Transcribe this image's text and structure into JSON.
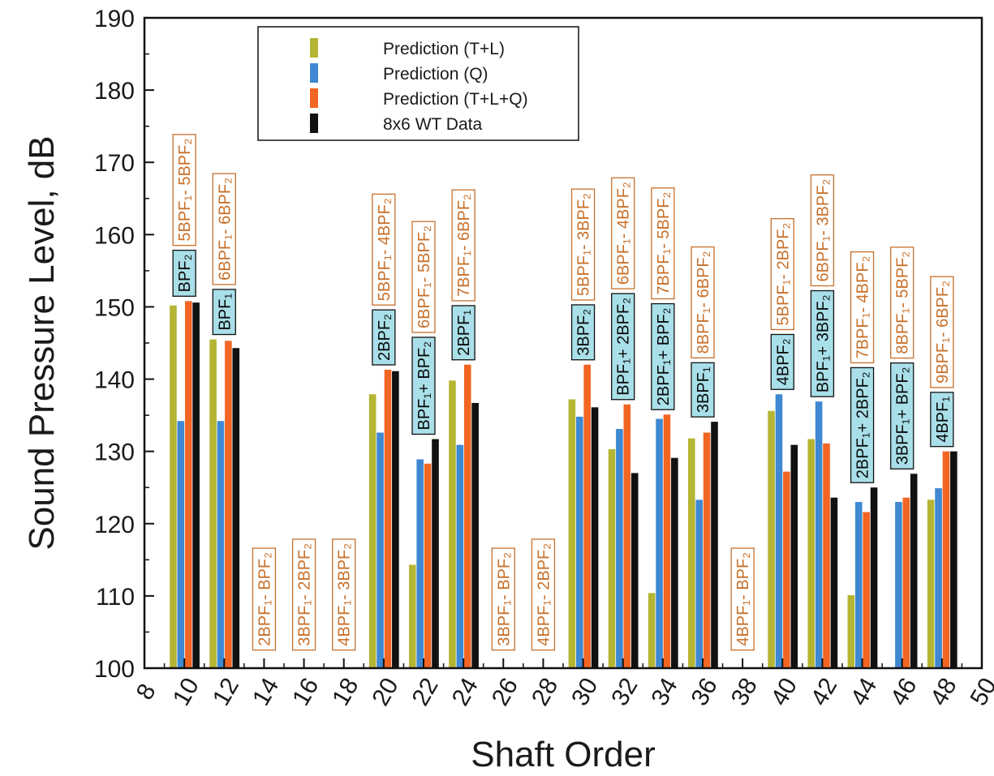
{
  "chart_data": {
    "type": "bar",
    "xlabel": "Shaft Order",
    "ylabel": "Sound Pressure Level, dB",
    "ylim": [
      100,
      190
    ],
    "yticks": [
      100,
      110,
      120,
      130,
      140,
      150,
      160,
      170,
      180,
      190
    ],
    "categories": [
      "8",
      "10",
      "12",
      "14",
      "16",
      "18",
      "20",
      "22",
      "24",
      "26",
      "28",
      "30",
      "32",
      "34",
      "36",
      "38",
      "40",
      "42",
      "44",
      "46",
      "48",
      "50"
    ],
    "grid": false,
    "legend_position": "top-center",
    "series": [
      {
        "name": "Prediction (T+L)",
        "color": "#b5b534",
        "values": [
          null,
          150.2,
          145.5,
          null,
          null,
          null,
          137.9,
          114.3,
          139.8,
          null,
          null,
          137.2,
          130.3,
          110.4,
          131.8,
          null,
          135.6,
          131.7,
          110.1,
          null,
          123.3,
          null
        ]
      },
      {
        "name": "Prediction (Q)",
        "color": "#3f88d2",
        "values": [
          null,
          134.2,
          134.2,
          null,
          null,
          null,
          132.6,
          128.9,
          130.9,
          null,
          null,
          134.8,
          133.1,
          134.5,
          123.3,
          null,
          137.9,
          136.9,
          123.0,
          123.0,
          124.9,
          null
        ]
      },
      {
        "name": "Prediction (T+L+Q)",
        "color": "#f26522",
        "values": [
          null,
          150.8,
          145.3,
          null,
          null,
          null,
          141.3,
          128.3,
          142.0,
          null,
          null,
          142.0,
          136.5,
          135.1,
          132.6,
          null,
          127.2,
          131.1,
          121.6,
          123.6,
          130.0,
          null
        ]
      },
      {
        "name": "8x6 WT Data",
        "color": "#111111",
        "values": [
          null,
          150.6,
          144.3,
          null,
          null,
          null,
          141.1,
          131.7,
          136.7,
          null,
          null,
          136.1,
          127.0,
          129.1,
          134.1,
          null,
          130.9,
          123.6,
          125.0,
          126.9,
          130.0,
          null
        ]
      }
    ],
    "annotations": {
      "sum_boxes": [
        {
          "category": "10",
          "label": "BPF₂"
        },
        {
          "category": "12",
          "label": "BPF₁"
        },
        {
          "category": "20",
          "label": "2BPF₂"
        },
        {
          "category": "22",
          "label": "BPF₁+ BPF₂"
        },
        {
          "category": "24",
          "label": "2BPF₁"
        },
        {
          "category": "30",
          "label": "3BPF₂"
        },
        {
          "category": "32",
          "label": "BPF₁+ 2BPF₂"
        },
        {
          "category": "34",
          "label": "2BPF₁+ BPF₂"
        },
        {
          "category": "36",
          "label": "3BPF₁"
        },
        {
          "category": "40",
          "label": "4BPF₂"
        },
        {
          "category": "42",
          "label": "BPF₁+ 3BPF₂"
        },
        {
          "category": "44",
          "label": "2BPF₁+ 2BPF₂"
        },
        {
          "category": "46",
          "label": "3BPF₁+ BPF₂"
        },
        {
          "category": "48",
          "label": "4BPF₁"
        }
      ],
      "difference_boxes": [
        {
          "category": "10",
          "label": "5BPF₁- 5BPF₂"
        },
        {
          "category": "12",
          "label": "6BPF₁- 6BPF₂"
        },
        {
          "category": "14",
          "label": "2BPF₁- BPF₂"
        },
        {
          "category": "16",
          "label": "3BPF₁- 2BPF₂"
        },
        {
          "category": "18",
          "label": "4BPF₁- 3BPF₂"
        },
        {
          "category": "20",
          "label": "5BPF₁- 4BPF₂"
        },
        {
          "category": "22",
          "label": "6BPF₁- 5BPF₂"
        },
        {
          "category": "24",
          "label": "7BPF₁- 6BPF₂"
        },
        {
          "category": "26",
          "label": "3BPF₁- BPF₂"
        },
        {
          "category": "28",
          "label": "4BPF₁- 2BPF₂"
        },
        {
          "category": "30",
          "label": "5BPF₁- 3BPF₂"
        },
        {
          "category": "32",
          "label": "6BPF₁- 4BPF₂"
        },
        {
          "category": "34",
          "label": "7BPF₁- 5BPF₂"
        },
        {
          "category": "36",
          "label": "8BPF₁- 6BPF₂"
        },
        {
          "category": "38",
          "label": "4BPF₁- BPF₂"
        },
        {
          "category": "40",
          "label": "5BPF₁- 2BPF₂"
        },
        {
          "category": "42",
          "label": "6BPF₁- 3BPF₂"
        },
        {
          "category": "44",
          "label": "7BPF₁- 4BPF₂"
        },
        {
          "category": "46",
          "label": "8BPF₁- 5BPF₂"
        },
        {
          "category": "48",
          "label": "9BPF₁- 6BPF₂"
        }
      ],
      "sum_box_fill": "#a9dfe8",
      "difference_text_color": "#c8702a"
    }
  }
}
